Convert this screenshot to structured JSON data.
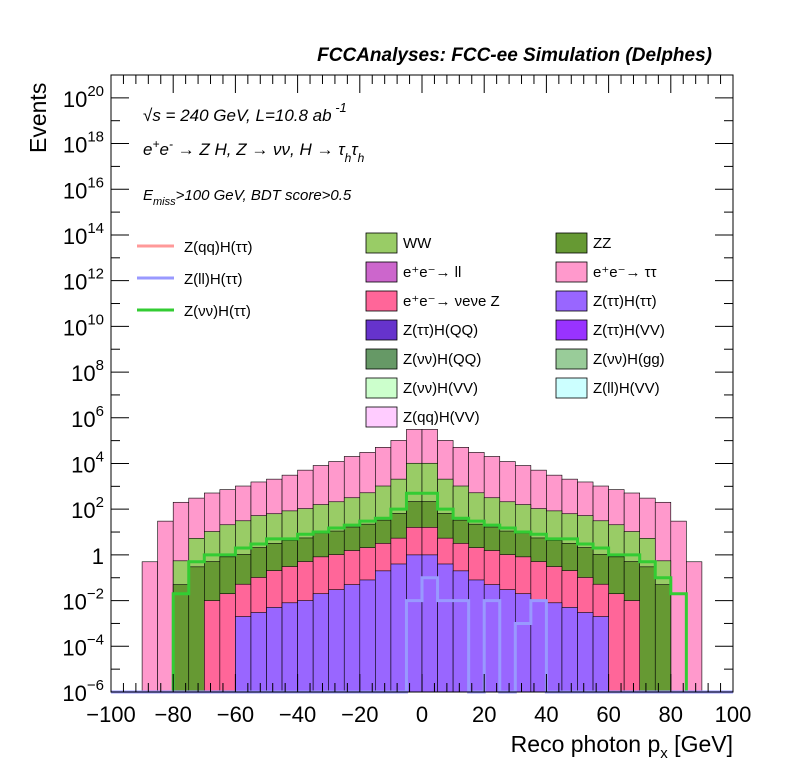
{
  "chart_data": {
    "type": "histogram-stacked",
    "title": "FCCAnalyses: FCC-ee Simulation (Delphes)",
    "annotations": [
      "√s = 240 GeV, L=10.8 ab⁻¹",
      "e⁺e⁻ → Z H, Z → νν, H → τhτh",
      "Emiss>100 GeV, BDT score>0.5"
    ],
    "xlabel": "Reco photon p_x [GeV]",
    "ylabel": "Events",
    "xlim": [
      -100,
      100
    ],
    "ylim": [
      1e-06,
      1e+21
    ],
    "log_y": true,
    "grid": false,
    "x_ticks": [
      -100,
      -80,
      -60,
      -40,
      -20,
      0,
      20,
      40,
      60,
      80,
      100
    ],
    "x_tick_labels": [
      "−100",
      "−80",
      "−60",
      "−40",
      "−20",
      "0",
      "20",
      "40",
      "60",
      "80",
      "100"
    ],
    "y_ticks": [
      {
        "value": 1e-06,
        "base": "10",
        "exp": "−6"
      },
      {
        "value": 0.0001,
        "base": "10",
        "exp": "−4"
      },
      {
        "value": 0.01,
        "base": "10",
        "exp": "−2"
      },
      {
        "value": 1,
        "base": "1",
        "exp": ""
      },
      {
        "value": 100.0,
        "base": "10",
        "exp": "2"
      },
      {
        "value": 10000.0,
        "base": "10",
        "exp": "4"
      },
      {
        "value": 1000000.0,
        "base": "10",
        "exp": "6"
      },
      {
        "value": 100000000.0,
        "base": "10",
        "exp": "8"
      },
      {
        "value": 10000000000.0,
        "base": "10",
        "exp": "10"
      },
      {
        "value": 1000000000000.0,
        "base": "10",
        "exp": "12"
      },
      {
        "value": 100000000000000.0,
        "base": "10",
        "exp": "14"
      },
      {
        "value": 1e+16,
        "base": "10",
        "exp": "16"
      },
      {
        "value": 1e+18,
        "base": "10",
        "exp": "18"
      },
      {
        "value": 1e+20,
        "base": "10",
        "exp": "20"
      }
    ],
    "bin_edges": [
      -100,
      -95,
      -90,
      -85,
      -80,
      -75,
      -70,
      -65,
      -60,
      -55,
      -50,
      -45,
      -40,
      -35,
      -30,
      -25,
      -20,
      -15,
      -10,
      -5,
      0,
      5,
      10,
      15,
      20,
      25,
      30,
      35,
      40,
      45,
      50,
      55,
      60,
      65,
      70,
      75,
      80,
      85,
      90,
      95,
      100
    ],
    "stack": [
      {
        "name": "e⁺e⁻ → ττ",
        "color": "#ff99cc",
        "values": [
          0,
          0,
          0.5,
          30,
          200,
          300,
          500,
          700,
          1000,
          1500,
          2000,
          3000,
          5000,
          8000,
          12000,
          20000,
          30000,
          50000,
          100000,
          300000,
          300000,
          100000,
          50000,
          30000,
          20000,
          12000,
          8000,
          5000,
          3000,
          2000,
          1500,
          1000,
          700,
          500,
          300,
          200,
          30,
          0.5,
          0,
          0
        ]
      },
      {
        "name": "WW",
        "color": "#99cc66",
        "values": [
          0,
          0,
          0,
          0,
          0.5,
          5,
          10,
          20,
          30,
          50,
          60,
          80,
          100,
          150,
          200,
          300,
          500,
          1000,
          2000,
          10000,
          10000,
          2000,
          1000,
          500,
          300,
          200,
          150,
          100,
          80,
          60,
          50,
          30,
          20,
          10,
          5,
          0.5,
          0,
          0,
          0,
          0
        ]
      },
      {
        "name": "ZZ",
        "color": "#669933",
        "values": [
          0,
          0,
          0,
          0,
          0.05,
          0.3,
          0.5,
          0.8,
          1,
          2,
          3,
          4,
          5,
          8,
          10,
          15,
          20,
          30,
          60,
          200,
          200,
          60,
          30,
          20,
          15,
          10,
          8,
          5,
          4,
          3,
          2,
          1,
          0.8,
          0.5,
          0.3,
          0.05,
          0,
          0,
          0,
          0
        ]
      },
      {
        "name": "e⁺e⁻ → νeνe Z",
        "color": "#ff6699",
        "values": [
          0,
          0,
          0,
          0,
          0,
          0,
          0.01,
          0.02,
          0.05,
          0.1,
          0.2,
          0.3,
          0.5,
          0.8,
          1,
          1.5,
          2,
          3,
          5,
          15,
          15,
          5,
          3,
          2,
          1.5,
          1,
          0.8,
          0.5,
          0.3,
          0.2,
          0.1,
          0.05,
          0.02,
          0.01,
          0,
          0,
          0,
          0,
          0,
          0
        ]
      },
      {
        "name": "Z(ττ)H(ττ)",
        "color": "#9966ff",
        "values": [
          0,
          0,
          0,
          0,
          0,
          0,
          0,
          0,
          0.002,
          0.003,
          0.005,
          0.008,
          0.01,
          0.02,
          0.03,
          0.05,
          0.08,
          0.2,
          0.4,
          1,
          1,
          0.4,
          0.2,
          0.08,
          0.05,
          0.03,
          0.02,
          0.01,
          0.008,
          0.005,
          0.003,
          0.002,
          0,
          0,
          0,
          0,
          0,
          0,
          0,
          0
        ]
      }
    ],
    "lines": [
      {
        "name": "Z(νν)H(ττ)",
        "color": "#33cc33",
        "values": [
          0,
          0,
          0,
          0,
          0.02,
          0.5,
          1,
          1,
          2,
          3,
          5,
          5,
          8,
          10,
          15,
          20,
          30,
          40,
          100,
          500,
          500,
          100,
          40,
          30,
          20,
          15,
          10,
          8,
          5,
          5,
          3,
          2,
          1,
          1,
          0.5,
          0.1,
          0.02,
          0,
          0,
          0
        ]
      },
      {
        "name": "Z(ll)H(ττ)",
        "color": "#9999ff",
        "values": [
          0,
          0,
          0,
          0,
          0,
          0,
          0,
          0,
          0,
          0,
          0,
          0,
          0,
          0,
          0,
          0,
          0,
          0,
          0,
          0.01,
          0.1,
          0.01,
          0.01,
          0,
          0.01,
          0,
          0.001,
          0.01,
          0,
          0,
          0,
          0,
          0,
          0,
          0,
          0,
          0,
          0,
          0,
          0
        ]
      },
      {
        "name": "Z(qq)H(ττ)",
        "color": "#ff9999",
        "values": []
      }
    ],
    "legend_left": [
      {
        "label": "Z(qq)H(ττ)",
        "color": "#ff9999",
        "kind": "line"
      },
      {
        "label": "Z(ll)H(ττ)",
        "color": "#9999ff",
        "kind": "line"
      },
      {
        "label": "Z(νν)H(ττ)",
        "color": "#33cc33",
        "kind": "line"
      }
    ],
    "legend_right": [
      {
        "label": "WW",
        "color": "#99cc66"
      },
      {
        "label": "ZZ",
        "color": "#669933"
      },
      {
        "label": "e⁺e⁻→ ll",
        "color": "#cc66cc"
      },
      {
        "label": "e⁺e⁻→ ττ",
        "color": "#ff99cc"
      },
      {
        "label": "e⁺e⁻→ νeνe Z",
        "color": "#ff6699"
      },
      {
        "label": "Z(ττ)H(ττ)",
        "color": "#9966ff"
      },
      {
        "label": "Z(ττ)H(QQ)",
        "color": "#6633cc"
      },
      {
        "label": "Z(ττ)H(VV)",
        "color": "#9933ff"
      },
      {
        "label": "Z(νν)H(QQ)",
        "color": "#669966"
      },
      {
        "label": "Z(νν)H(gg)",
        "color": "#99cc99"
      },
      {
        "label": "Z(νν)H(VV)",
        "color": "#ccffcc"
      },
      {
        "label": "Z(ll)H(VV)",
        "color": "#ccffff"
      },
      {
        "label": "Z(qq)H(VV)",
        "color": "#ffccff"
      }
    ]
  }
}
